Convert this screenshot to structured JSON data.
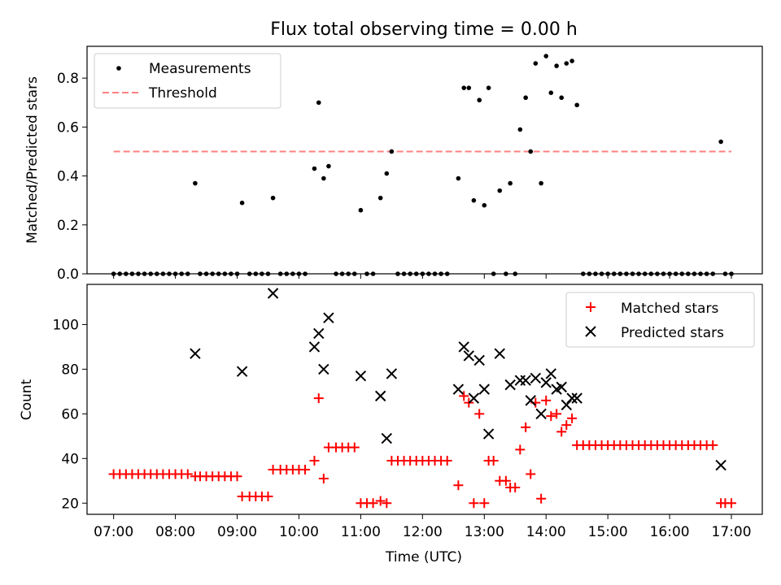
{
  "figure": {
    "title": "Flux total observing time = 0.00 h",
    "xlabel": "Time (UTC)",
    "xticks": [
      "07:00",
      "08:00",
      "09:00",
      "10:00",
      "11:00",
      "12:00",
      "13:00",
      "14:00",
      "15:00",
      "16:00",
      "17:00"
    ]
  },
  "chart_data": [
    {
      "type": "scatter",
      "ylabel": "Matched/Predicted stars",
      "ylim": [
        0,
        0.93
      ],
      "yticks": [
        0,
        0.2,
        0.4,
        0.6,
        0.8
      ],
      "ytick_labels": [
        "0.0",
        "0.2",
        "0.4",
        "0.6",
        "0.8"
      ],
      "xlim": [
        6.57,
        17.5
      ],
      "legend_position": "top-left",
      "threshold": {
        "name": "Threshold",
        "value": 0.5,
        "x_start": 7.0,
        "x_end": 17.0,
        "color": "#ff8080"
      },
      "series": [
        {
          "name": "Measurements",
          "color": "#000000",
          "x": [
            7.0,
            7.1,
            7.2,
            7.3,
            7.4,
            7.5,
            7.6,
            7.7,
            7.8,
            7.9,
            8.0,
            8.1,
            8.2,
            8.32,
            8.4,
            8.5,
            8.6,
            8.7,
            8.8,
            8.9,
            9.0,
            9.08,
            9.2,
            9.3,
            9.4,
            9.5,
            9.58,
            9.7,
            9.8,
            9.9,
            10.0,
            10.1,
            10.25,
            10.32,
            10.4,
            10.48,
            10.6,
            10.7,
            10.8,
            10.9,
            11.0,
            11.1,
            11.2,
            11.32,
            11.42,
            11.5,
            11.6,
            11.7,
            11.8,
            11.9,
            12.0,
            12.1,
            12.2,
            12.3,
            12.4,
            12.58,
            12.67,
            12.75,
            12.83,
            12.92,
            13.0,
            13.07,
            13.15,
            13.25,
            13.35,
            13.42,
            13.5,
            13.58,
            13.67,
            13.75,
            13.83,
            13.92,
            14.0,
            14.08,
            14.17,
            14.25,
            14.33,
            14.42,
            14.5,
            14.6,
            14.7,
            14.8,
            14.9,
            15.0,
            15.1,
            15.2,
            15.3,
            15.4,
            15.5,
            15.6,
            15.7,
            15.8,
            15.9,
            16.0,
            16.1,
            16.2,
            16.3,
            16.4,
            16.5,
            16.6,
            16.7,
            16.83,
            16.9,
            17.0
          ],
          "y": [
            0,
            0,
            0,
            0,
            0,
            0,
            0,
            0,
            0,
            0,
            0,
            0,
            0,
            0.37,
            0,
            0,
            0,
            0,
            0,
            0,
            0,
            0.29,
            0,
            0,
            0,
            0,
            0.31,
            0,
            0,
            0,
            0,
            0,
            0.43,
            0.7,
            0.39,
            0.44,
            0,
            0,
            0,
            0,
            0.26,
            0,
            0,
            0.31,
            0.41,
            0.5,
            0,
            0,
            0,
            0,
            0,
            0,
            0,
            0,
            0,
            0.39,
            0.76,
            0.76,
            0.3,
            0.71,
            0.28,
            0.76,
            0,
            0.34,
            0,
            0.37,
            0,
            0.59,
            0.72,
            0.5,
            0.86,
            0.37,
            0.89,
            0.74,
            0.85,
            0.72,
            0.86,
            0.87,
            0.69,
            0,
            0,
            0,
            0,
            0,
            0,
            0,
            0,
            0,
            0,
            0,
            0,
            0,
            0,
            0,
            0,
            0,
            0,
            0,
            0,
            0,
            0,
            0.54,
            0,
            0
          ]
        }
      ]
    },
    {
      "type": "scatter",
      "ylabel": "Count",
      "ylim": [
        15,
        118
      ],
      "yticks": [
        20,
        40,
        60,
        80,
        100
      ],
      "xlim": [
        6.57,
        17.5
      ],
      "legend_position": "top-right",
      "series": [
        {
          "name": "Matched stars",
          "color": "#ff0000",
          "marker": "plus",
          "x": [
            7.0,
            7.1,
            7.2,
            7.3,
            7.4,
            7.5,
            7.6,
            7.7,
            7.8,
            7.9,
            8.0,
            8.1,
            8.2,
            8.32,
            8.4,
            8.5,
            8.6,
            8.7,
            8.8,
            8.9,
            9.0,
            9.08,
            9.2,
            9.3,
            9.4,
            9.5,
            9.58,
            9.7,
            9.8,
            9.9,
            10.0,
            10.1,
            10.25,
            10.32,
            10.4,
            10.48,
            10.6,
            10.7,
            10.8,
            10.9,
            11.0,
            11.1,
            11.2,
            11.32,
            11.42,
            11.5,
            11.6,
            11.7,
            11.8,
            11.9,
            12.0,
            12.1,
            12.2,
            12.3,
            12.4,
            12.58,
            12.67,
            12.75,
            12.83,
            12.92,
            13.0,
            13.07,
            13.15,
            13.25,
            13.35,
            13.42,
            13.5,
            13.58,
            13.67,
            13.75,
            13.83,
            13.92,
            14.0,
            14.08,
            14.17,
            14.25,
            14.33,
            14.42,
            14.5,
            14.6,
            14.7,
            14.8,
            14.9,
            15.0,
            15.1,
            15.2,
            15.3,
            15.4,
            15.5,
            15.6,
            15.7,
            15.8,
            15.9,
            16.0,
            16.1,
            16.2,
            16.3,
            16.4,
            16.5,
            16.6,
            16.7,
            16.83,
            16.9,
            17.0
          ],
          "y": [
            33,
            33,
            33,
            33,
            33,
            33,
            33,
            33,
            33,
            33,
            33,
            33,
            33,
            32,
            32,
            32,
            32,
            32,
            32,
            32,
            32,
            23,
            23,
            23,
            23,
            23,
            35,
            35,
            35,
            35,
            35,
            35,
            39,
            67,
            31,
            45,
            45,
            45,
            45,
            45,
            20,
            20,
            20,
            21,
            20,
            39,
            39,
            39,
            39,
            39,
            39,
            39,
            39,
            39,
            39,
            28,
            68,
            65,
            20,
            60,
            20,
            39,
            39,
            30,
            30,
            27,
            27,
            44,
            54,
            33,
            65,
            22,
            66,
            59,
            60,
            52,
            55,
            58,
            46,
            46,
            46,
            46,
            46,
            46,
            46,
            46,
            46,
            46,
            46,
            46,
            46,
            46,
            46,
            46,
            46,
            46,
            46,
            46,
            46,
            46,
            46,
            20,
            20,
            20
          ]
        },
        {
          "name": "Predicted stars",
          "color": "#000000",
          "marker": "x",
          "x": [
            8.32,
            9.08,
            9.58,
            10.25,
            10.32,
            10.4,
            10.48,
            11.0,
            11.32,
            11.42,
            11.5,
            12.58,
            12.67,
            12.75,
            12.83,
            12.92,
            13.0,
            13.07,
            13.25,
            13.42,
            13.58,
            13.67,
            13.75,
            13.83,
            13.92,
            14.0,
            14.08,
            14.17,
            14.25,
            14.33,
            14.42,
            14.5,
            16.83
          ],
          "y": [
            87,
            79,
            114,
            90,
            96,
            80,
            103,
            77,
            68,
            49,
            78,
            71,
            90,
            86,
            67,
            84,
            71,
            51,
            87,
            73,
            75,
            75,
            66,
            76,
            60,
            74,
            78,
            71,
            72,
            64,
            67,
            67,
            37
          ]
        }
      ]
    }
  ]
}
